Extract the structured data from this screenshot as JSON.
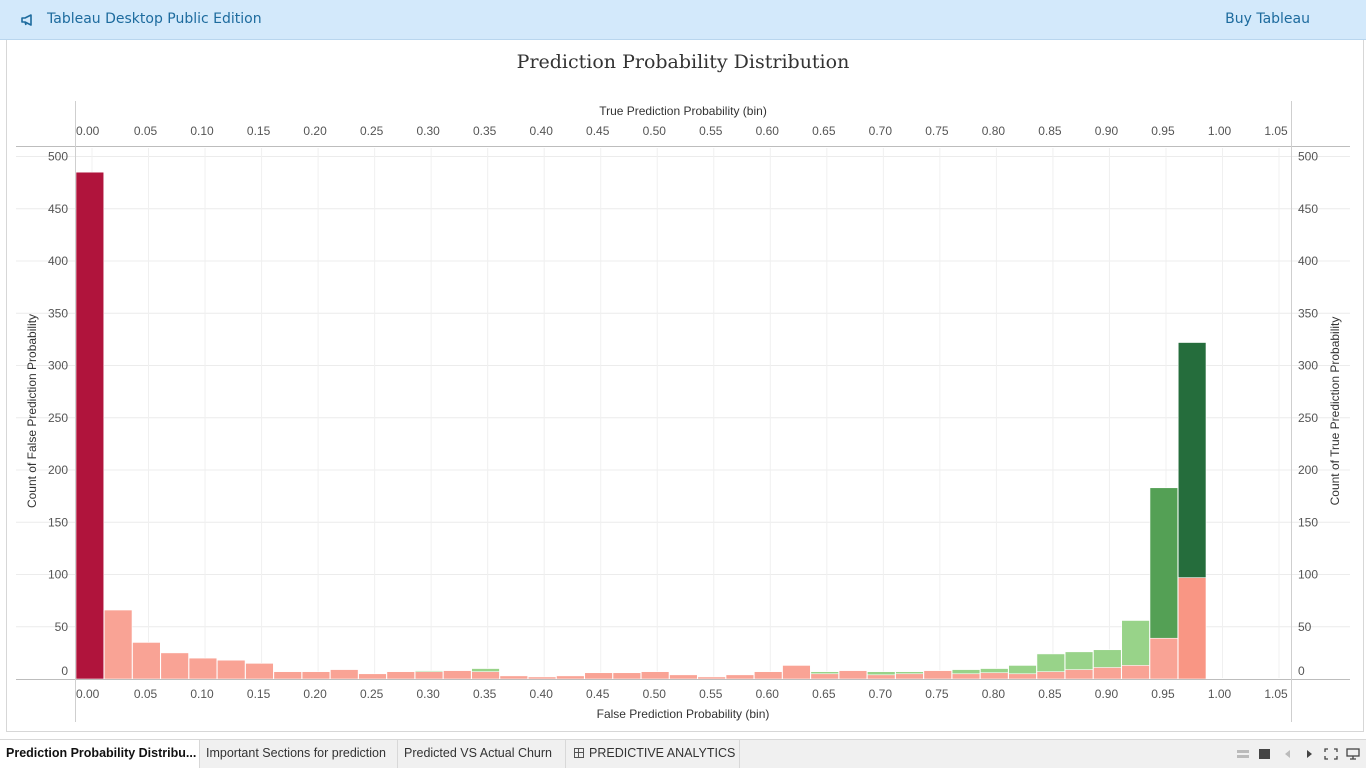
{
  "topbar": {
    "app_title": "Tableau Desktop Public Edition",
    "buy_label": "Buy Tableau",
    "icon": "megaphone-icon"
  },
  "chart_data": {
    "type": "bar",
    "title": "Prediction Probability Distribution",
    "xlabel_top": "True Prediction Probability (bin)",
    "xlabel_bottom": "False Prediction Probability (bin)",
    "ylabel_left": "Count of False Prediction Probability",
    "ylabel_right": "Count of True Prediction Probability",
    "xlim": [
      0.0,
      1.05
    ],
    "ylim": [
      0,
      500
    ],
    "x_ticks": [
      "0.00",
      "0.05",
      "0.10",
      "0.15",
      "0.20",
      "0.25",
      "0.30",
      "0.35",
      "0.40",
      "0.45",
      "0.50",
      "0.55",
      "0.60",
      "0.65",
      "0.70",
      "0.75",
      "0.80",
      "0.85",
      "0.90",
      "0.95",
      "1.00",
      "1.05"
    ],
    "y_ticks": [
      "0",
      "50",
      "100",
      "150",
      "200",
      "250",
      "300",
      "350",
      "400",
      "450",
      "500"
    ],
    "grid": true,
    "bin_width": 0.025,
    "series": [
      {
        "name": "Count of False Prediction Probability",
        "colors": {
          "peak": "#b0143c",
          "normal": "#f9a395",
          "high": "#f99684"
        },
        "points": [
          {
            "x": 0.0,
            "y": 485
          },
          {
            "x": 0.025,
            "y": 66
          },
          {
            "x": 0.05,
            "y": 35
          },
          {
            "x": 0.075,
            "y": 25
          },
          {
            "x": 0.1,
            "y": 20
          },
          {
            "x": 0.125,
            "y": 18
          },
          {
            "x": 0.15,
            "y": 15
          },
          {
            "x": 0.175,
            "y": 7
          },
          {
            "x": 0.2,
            "y": 7
          },
          {
            "x": 0.225,
            "y": 9
          },
          {
            "x": 0.25,
            "y": 5
          },
          {
            "x": 0.275,
            "y": 7
          },
          {
            "x": 0.3,
            "y": 7
          },
          {
            "x": 0.325,
            "y": 8
          },
          {
            "x": 0.35,
            "y": 7
          },
          {
            "x": 0.375,
            "y": 3
          },
          {
            "x": 0.4,
            "y": 2
          },
          {
            "x": 0.425,
            "y": 3
          },
          {
            "x": 0.45,
            "y": 6
          },
          {
            "x": 0.475,
            "y": 6
          },
          {
            "x": 0.5,
            "y": 7
          },
          {
            "x": 0.525,
            "y": 4
          },
          {
            "x": 0.55,
            "y": 2
          },
          {
            "x": 0.575,
            "y": 4
          },
          {
            "x": 0.6,
            "y": 7
          },
          {
            "x": 0.625,
            "y": 13
          },
          {
            "x": 0.65,
            "y": 5
          },
          {
            "x": 0.675,
            "y": 8
          },
          {
            "x": 0.7,
            "y": 4
          },
          {
            "x": 0.725,
            "y": 5
          },
          {
            "x": 0.75,
            "y": 8
          },
          {
            "x": 0.775,
            "y": 5
          },
          {
            "x": 0.8,
            "y": 6
          },
          {
            "x": 0.825,
            "y": 5
          },
          {
            "x": 0.85,
            "y": 7
          },
          {
            "x": 0.875,
            "y": 9
          },
          {
            "x": 0.9,
            "y": 11
          },
          {
            "x": 0.925,
            "y": 13
          },
          {
            "x": 0.95,
            "y": 39
          },
          {
            "x": 0.975,
            "y": 97
          }
        ]
      },
      {
        "name": "Count of True Prediction Probability",
        "colors": {
          "peak": "#256d3c",
          "normal": "#98d389",
          "high": "#54a055"
        },
        "points": [
          {
            "x": 0.3,
            "y": 8
          },
          {
            "x": 0.325,
            "y": 8
          },
          {
            "x": 0.35,
            "y": 10
          },
          {
            "x": 0.65,
            "y": 7
          },
          {
            "x": 0.7,
            "y": 7
          },
          {
            "x": 0.725,
            "y": 7
          },
          {
            "x": 0.75,
            "y": 8
          },
          {
            "x": 0.775,
            "y": 9
          },
          {
            "x": 0.8,
            "y": 10
          },
          {
            "x": 0.825,
            "y": 13
          },
          {
            "x": 0.85,
            "y": 24
          },
          {
            "x": 0.875,
            "y": 26
          },
          {
            "x": 0.9,
            "y": 28
          },
          {
            "x": 0.925,
            "y": 56
          },
          {
            "x": 0.95,
            "y": 183
          },
          {
            "x": 0.975,
            "y": 322
          }
        ]
      }
    ]
  },
  "tabs": [
    {
      "label": "Prediction Probability Distribu...",
      "active": true
    },
    {
      "label": "Important Sections for prediction",
      "active": false
    },
    {
      "label": "Predicted VS Actual Churn",
      "active": false
    },
    {
      "label": "PREDICTIVE ANALYTICS",
      "active": false,
      "icon": "dashboard-grid-icon"
    }
  ],
  "controls": [
    "grid-view-icon",
    "sheet-view-icon",
    "prev-icon",
    "next-icon",
    "fullscreen-icon",
    "presentation-icon"
  ]
}
